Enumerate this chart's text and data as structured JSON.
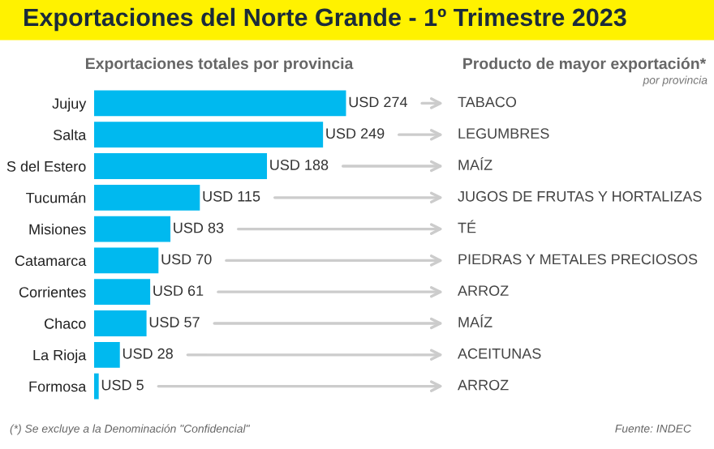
{
  "chart_data": {
    "type": "bar",
    "orientation": "horizontal",
    "title": "Exportaciones del Norte Grande - 1º Trimestre 2023",
    "subtitle": "Exportaciones totales por provincia",
    "categories": [
      "Jujuy",
      "Salta",
      "S del Estero",
      "Tucumán",
      "Misiones",
      "Catamarca",
      "Corrientes",
      "Chaco",
      "La Rioja",
      "Formosa"
    ],
    "values": [
      274,
      249,
      188,
      115,
      83,
      70,
      61,
      57,
      28,
      5
    ],
    "value_labels": [
      "USD 274",
      "USD 249",
      "USD 188",
      "USD 115",
      "USD 83",
      "USD 70",
      "USD 61",
      "USD 57",
      "USD 28",
      "USD 5"
    ],
    "color": "#00b9ef",
    "tick_labels": "y",
    "grid": false,
    "annotations": [
      "Producto de mayor exportación*",
      "por provincia",
      "(*) Se excluye a la Denominación \"Confidencial\"",
      "Fuente: INDEC",
      "TABACO",
      "LEGUMBRES",
      "MAÍZ",
      "JUGOS DE FRUTAS Y HORTALIZAS",
      "TÉ",
      "PIEDRAS Y METALES PRECIOSOS",
      "ARROZ",
      "MAÍZ",
      "ACEITUNAS",
      "ARROZ"
    ]
  }
}
